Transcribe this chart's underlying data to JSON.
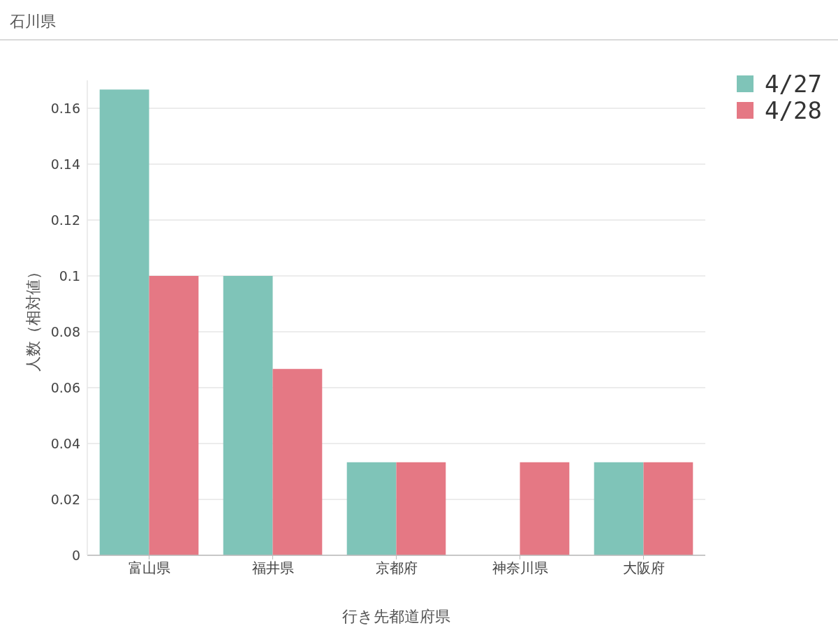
{
  "chart_data": {
    "type": "bar",
    "title": "石川県",
    "xlabel": "行き先都道府県",
    "ylabel": "人数（相対値）",
    "categories": [
      "富山県",
      "福井県",
      "京都府",
      "神奈川県",
      "大阪府"
    ],
    "series": [
      {
        "name": "4/27",
        "color": "#7fc4b8",
        "values": [
          0.1667,
          0.1,
          0.0333,
          0,
          0.0333
        ]
      },
      {
        "name": "4/28",
        "color": "#e57884",
        "values": [
          0.1,
          0.0667,
          0.0333,
          0.0333,
          0.0333
        ]
      }
    ],
    "ylim": [
      0,
      0.17
    ],
    "yticks": [
      0,
      0.02,
      0.04,
      0.06,
      0.08,
      0.1,
      0.12,
      0.14,
      0.16
    ],
    "grid": "y",
    "legend": "top right"
  }
}
